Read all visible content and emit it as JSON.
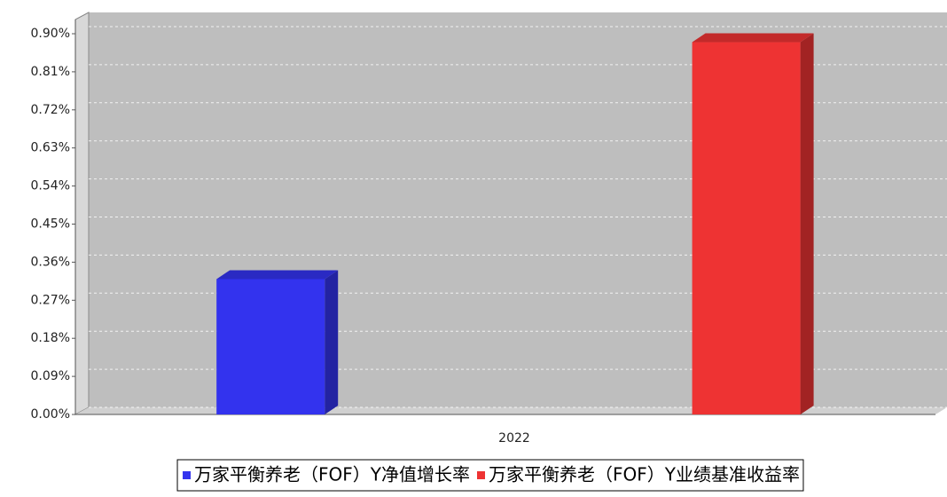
{
  "chart_data": {
    "type": "bar3d",
    "categories": [
      "2022"
    ],
    "series": [
      {
        "name": "万家平衡养老（FOF）Y净值增长率",
        "color": "#3333ee",
        "values": [
          0.32
        ]
      },
      {
        "name": "万家平衡养老（FOF）Y业绩基准收益率",
        "color": "#ee3333",
        "values": [
          0.88
        ]
      }
    ],
    "ylim": [
      0,
      0.9
    ],
    "yticks": [
      {
        "value": 0,
        "label": "0.00%"
      },
      {
        "value": 0.09,
        "label": "0.09%"
      },
      {
        "value": 0.18,
        "label": "0.18%"
      },
      {
        "value": 0.27,
        "label": "0.27%"
      },
      {
        "value": 0.36,
        "label": "0.36%"
      },
      {
        "value": 0.45,
        "label": "0.45%"
      },
      {
        "value": 0.54,
        "label": "0.54%"
      },
      {
        "value": 0.63,
        "label": "0.63%"
      },
      {
        "value": 0.72,
        "label": "0.72%"
      },
      {
        "value": 0.81,
        "label": "0.81%"
      },
      {
        "value": 0.9,
        "label": "0.90%"
      }
    ],
    "grid": true
  }
}
